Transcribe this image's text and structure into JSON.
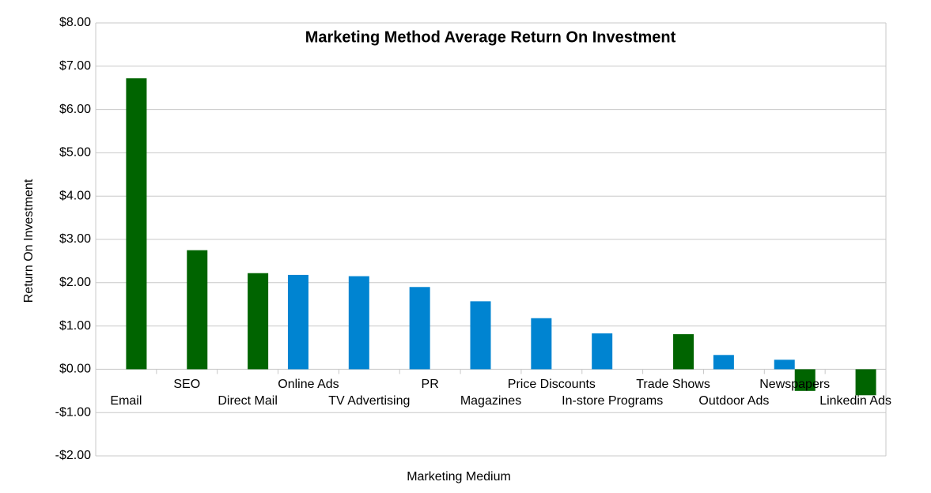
{
  "chart_data": {
    "type": "bar",
    "title": "Marketing Method Average Return On Investment",
    "x_label": "Marketing Medium",
    "y_label": "Return On Investment",
    "categories": [
      "Email",
      "SEO",
      "Direct Mail",
      "Online Ads",
      "TV Advertising",
      "PR",
      "Magazines",
      "Price Discounts",
      "In-store Programs",
      "Trade Shows",
      "Outdoor Ads",
      "Newspapers",
      "Linkedin Ads"
    ],
    "series": [
      {
        "color": "#0084d1",
        "values": [
          null,
          null,
          null,
          2.18,
          2.15,
          1.9,
          1.57,
          1.18,
          0.83,
          null,
          0.33,
          0.22,
          null
        ]
      },
      {
        "color": "#006400",
        "values": [
          6.72,
          2.75,
          2.22,
          null,
          null,
          null,
          null,
          null,
          null,
          0.81,
          null,
          -0.5,
          -0.6
        ]
      }
    ],
    "ylim": [
      -2,
      8
    ],
    "yticks": [
      {
        "value": -2,
        "label": "-$2.00"
      },
      {
        "value": -1,
        "label": "-$1.00"
      },
      {
        "value": 0,
        "label": "$0.00"
      },
      {
        "value": 1,
        "label": "$1.00"
      },
      {
        "value": 2,
        "label": "$2.00"
      },
      {
        "value": 3,
        "label": "$3.00"
      },
      {
        "value": 4,
        "label": "$4.00"
      },
      {
        "value": 5,
        "label": "$5.00"
      },
      {
        "value": 6,
        "label": "$6.00"
      },
      {
        "value": 7,
        "label": "$7.00"
      },
      {
        "value": 8,
        "label": "$8.00"
      }
    ],
    "grid": true
  }
}
